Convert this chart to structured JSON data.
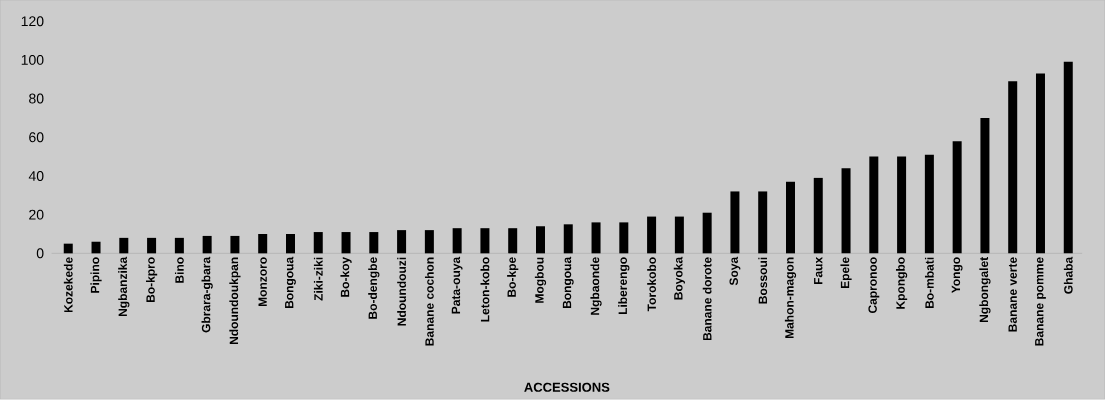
{
  "chart_data": {
    "type": "bar",
    "xlabel": "ACCESSIONS",
    "categories": [
      "Kozekede",
      "Pipino",
      "Ngbanzika",
      "Bo-kpro",
      "Bino",
      "Gbrara-gbara",
      "Ndoundoukpan",
      "Monzoro",
      "Bongoua",
      "Ziki-ziki",
      "Bo-koy",
      "Bo-dengbe",
      "Ndoundouzi",
      "Banane cochon",
      "Pata-ouya",
      "Leton-kobo",
      "Bo-kpe",
      "Mogbou",
      "Bongoua",
      "Ngbaonde",
      "Liberengo",
      "Torokobo",
      "Boyoka",
      "Banane dorote",
      "Soya",
      "Bossoui",
      "Mahon-magon",
      "Faux",
      "Epele",
      "Capronoo",
      "Kpongbo",
      "Bo-mbati",
      "Yongo",
      "Ngbongalet",
      "Banane verte",
      "Banane pomme",
      "Ghaba"
    ],
    "values": [
      5,
      6,
      8,
      8,
      8,
      9,
      9,
      10,
      10,
      11,
      11,
      11,
      12,
      12,
      13,
      13,
      13,
      14,
      15,
      16,
      16,
      19,
      19,
      21,
      32,
      32,
      37,
      39,
      44,
      50,
      50,
      51,
      58,
      70,
      89,
      93,
      99
    ],
    "color": "#000000",
    "ylim": [
      0,
      120
    ],
    "yticks": [
      0,
      20,
      40,
      60,
      80,
      100,
      120
    ]
  }
}
